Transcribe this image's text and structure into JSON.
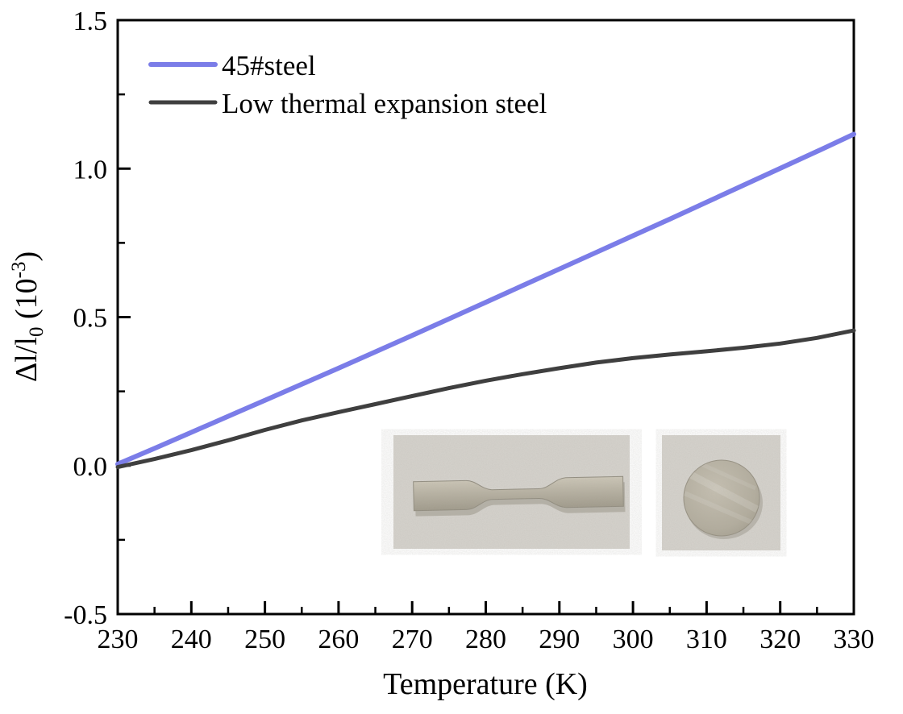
{
  "chart_data": {
    "type": "line",
    "title": "",
    "xlabel": "Temperature (K)",
    "ylabel": "Δl/l₀ (10⁻³)",
    "ylabel_parts": {
      "main": "Δl/l",
      "sub": "0",
      "mid": " (10",
      "sup": "-3",
      "end": ")"
    },
    "xlim": [
      230,
      330
    ],
    "ylim": [
      -0.5,
      1.5
    ],
    "x_major_ticks": [
      230,
      240,
      250,
      260,
      270,
      280,
      290,
      300,
      310,
      320,
      330
    ],
    "x_minor_step": 5,
    "y_major_ticks": [
      -0.5,
      0.0,
      0.5,
      1.0,
      1.5
    ],
    "y_major_labels": [
      "-0.5",
      "0.0",
      "0.5",
      "1.0",
      "1.5"
    ],
    "y_minor_step": 0.25,
    "grid": false,
    "legend_position": "top-left-inside",
    "x": [
      230,
      235,
      240,
      245,
      250,
      255,
      260,
      265,
      270,
      275,
      280,
      285,
      290,
      295,
      300,
      305,
      310,
      315,
      320,
      325,
      330
    ],
    "series": [
      {
        "name": "45#steel",
        "color": "#7b7de8",
        "line_width": 6,
        "values": [
          0.005,
          0.058,
          0.112,
          0.166,
          0.22,
          0.274,
          0.328,
          0.383,
          0.438,
          0.494,
          0.55,
          0.606,
          0.662,
          0.718,
          0.774,
          0.83,
          0.887,
          0.944,
          1.001,
          1.058,
          1.116
        ]
      },
      {
        "name": "Low thermal expansion steel",
        "color": "#3f3f3f",
        "line_width": 5,
        "values": [
          -0.005,
          0.022,
          0.052,
          0.085,
          0.12,
          0.152,
          0.18,
          0.207,
          0.234,
          0.261,
          0.286,
          0.308,
          0.328,
          0.347,
          0.362,
          0.374,
          0.385,
          0.397,
          0.411,
          0.43,
          0.455
        ]
      }
    ]
  },
  "axis": {
    "line_color": "#000000",
    "tick_label_color": "#000000"
  },
  "insets": {
    "photo_background": "#d6d3cd",
    "specimen_color": "#b4ae9f",
    "photos": [
      {
        "name": "dog-bone tensile specimen photo",
        "shape": "dog-bone"
      },
      {
        "name": "round disc specimen photo",
        "shape": "disc"
      }
    ]
  }
}
